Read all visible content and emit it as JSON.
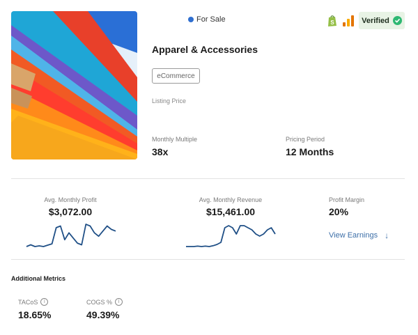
{
  "listing": {
    "status": "For Sale",
    "verified_label": "Verified",
    "title": "Apparel & Accessories",
    "category": "eCommerce",
    "listing_price_label": "Listing Price"
  },
  "pricing": {
    "multiple_label": "Monthly Multiple",
    "multiple_value": "38x",
    "period_label": "Pricing Period",
    "period_value": "12 Months"
  },
  "performance": {
    "profit_label": "Avg. Monthly Profit",
    "profit_value": "$3,072.00",
    "revenue_label": "Avg. Monthly Revenue",
    "revenue_value": "$15,461.00",
    "margin_label": "Profit Margin",
    "margin_value": "20%",
    "view_earnings": "View Earnings",
    "profit_trend": [
      3,
      3.5,
      3,
      3.2,
      3,
      3.4,
      3.8,
      8.5,
      9,
      5,
      7,
      5.5,
      4,
      3.5,
      9.5,
      9,
      7,
      6,
      7.5,
      9,
      8,
      7.5
    ],
    "revenue_trend": [
      2,
      2,
      2,
      2.1,
      2,
      2.1,
      2,
      2.2,
      2.5,
      3,
      6.5,
      7,
      6.5,
      5,
      7,
      7,
      6.5,
      6,
      5,
      4.5,
      5,
      6,
      6.5,
      5
    ]
  },
  "additional_metrics": {
    "section_title": "Additional Metrics",
    "tacos_label": "TACoS",
    "tacos_value": "18.65%",
    "cogs_label": "COGS %",
    "cogs_value": "49.39%"
  },
  "icons": {
    "status_dot": "status-dot-icon",
    "shopify": "shopify-icon",
    "analytics": "bar-chart-icon",
    "verified": "checkmark-icon",
    "info": "info-icon",
    "arrow": "arrow-down-icon"
  },
  "colors": {
    "accent_blue": "#2f6fd0",
    "sparkline": "#1f4f86",
    "verified_green": "#2eb872",
    "link": "#3d6fa8"
  }
}
